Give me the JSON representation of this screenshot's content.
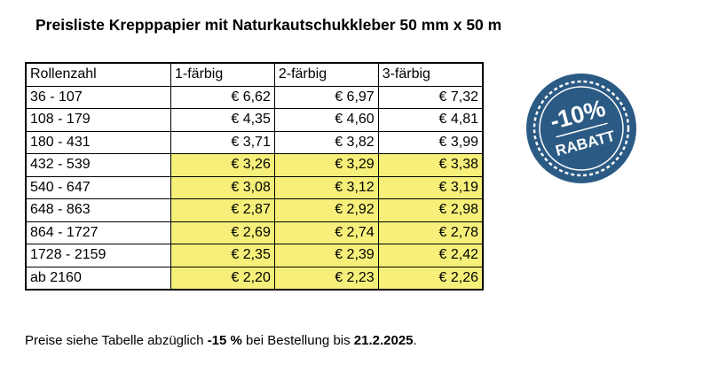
{
  "header": {
    "title": "Preisliste Krepppapier mit Naturkautschukkleber 50 mm x 50 m"
  },
  "table": {
    "columns": [
      "Rollenzahl",
      "1-färbig",
      "2-färbig",
      "3-färbig"
    ],
    "rows": [
      [
        "36 - 107",
        "€ 6,62",
        "€ 6,97",
        "€ 7,32"
      ],
      [
        "108 - 179",
        "€ 4,35",
        "€ 4,60",
        "€ 4,81"
      ],
      [
        "180 - 431",
        "€ 3,71",
        "€ 3,82",
        "€ 3,99"
      ],
      [
        "432 - 539",
        "€ 3,26",
        "€ 3,29",
        "€ 3,38"
      ],
      [
        "540 - 647",
        "€ 3,08",
        "€ 3,12",
        "€ 3,19"
      ],
      [
        "648 - 863",
        "€ 2,87",
        "€ 2,92",
        "€ 2,98"
      ],
      [
        "864  - 1727",
        "€ 2,69",
        "€ 2,74",
        "€ 2,78"
      ],
      [
        "1728 - 2159",
        "€ 2,35",
        "€ 2,39",
        "€ 2,42"
      ],
      [
        "ab 2160",
        "€ 2,20",
        "€ 2,23",
        "€ 2,26"
      ]
    ]
  },
  "badge": {
    "discount": "-10%",
    "label": "RABATT"
  },
  "footnote": {
    "parts": [
      "Preise siehe Tabelle abzüglich ",
      "-15 %",
      " bei Bestellung bis ",
      "21.2.2025",
      "."
    ]
  }
}
